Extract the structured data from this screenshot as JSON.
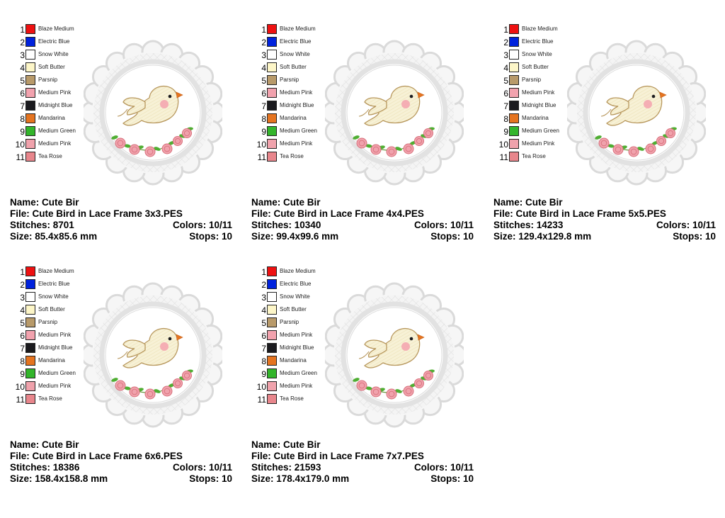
{
  "palette": [
    {
      "num": "1",
      "name": "Blaze Medium",
      "color": "#ee1111"
    },
    {
      "num": "2",
      "name": "Electric Blue",
      "color": "#0022dd"
    },
    {
      "num": "3",
      "name": "Snow White",
      "color": "#ffffff"
    },
    {
      "num": "4",
      "name": "Soft Butter",
      "color": "#fdf6c8"
    },
    {
      "num": "5",
      "name": "Parsnip",
      "color": "#b89a6a"
    },
    {
      "num": "6",
      "name": "Medium Pink",
      "color": "#f2a2ae"
    },
    {
      "num": "7",
      "name": "Midnight Blue",
      "color": "#1a1a1e"
    },
    {
      "num": "8",
      "name": "Mandarina",
      "color": "#e57420"
    },
    {
      "num": "9",
      "name": "Medium Green",
      "color": "#33b52b"
    },
    {
      "num": "10",
      "name": "Medium Pink",
      "color": "#f0a2ac"
    },
    {
      "num": "11",
      "name": "Tea Rose",
      "color": "#e8868c"
    }
  ],
  "labels": {
    "name": "Name:",
    "file": "File:",
    "stitches": "Stitches:",
    "colors": "Colors:",
    "size": "Size:",
    "stops": "Stops:"
  },
  "cards": [
    {
      "name": "Cute Bir",
      "file": "Cute Bird in Lace Frame 3x3.PES",
      "stitches": "8701",
      "colors": "10/11",
      "size": "85.4x85.6 mm",
      "stops": "10"
    },
    {
      "name": "Cute Bir",
      "file": "Cute Bird in Lace Frame 4x4.PES",
      "stitches": "10340",
      "colors": "10/11",
      "size": "99.4x99.6 mm",
      "stops": "10"
    },
    {
      "name": "Cute Bir",
      "file": "Cute Bird in Lace Frame 5x5.PES",
      "stitches": "14233",
      "colors": "10/11",
      "size": "129.4x129.8 mm",
      "stops": "10"
    },
    {
      "name": "Cute Bir",
      "file": "Cute Bird in Lace Frame 6x6.PES",
      "stitches": "18386",
      "colors": "10/11",
      "size": "158.4x158.8 mm",
      "stops": "10"
    },
    {
      "name": "Cute Bir",
      "file": "Cute Bird in Lace Frame 7x7.PES",
      "stitches": "21593",
      "colors": "10/11",
      "size": "178.4x179.0 mm",
      "stops": "10"
    }
  ]
}
